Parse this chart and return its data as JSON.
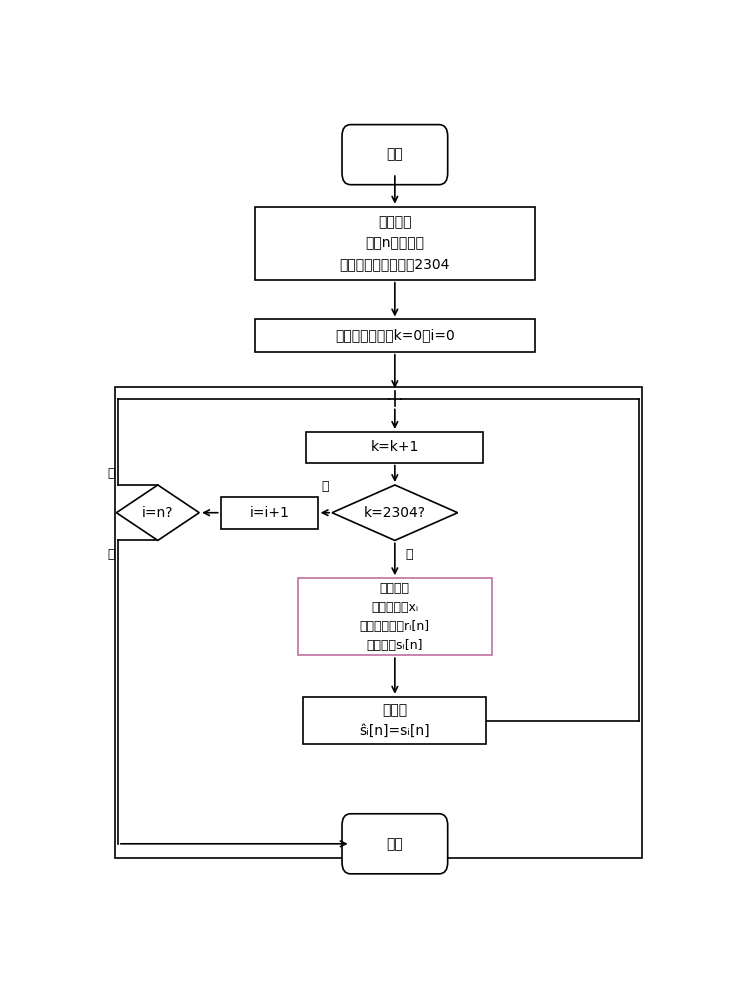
{
  "bg_color": "#ffffff",
  "line_color": "#000000",
  "fig_width": 7.37,
  "fig_height": 10.0,
  "start_text": "开始",
  "end_text": "结束",
  "init1_text": "初始化：\n生成n个数据帧\n每帧的数据块个数为2304",
  "init2_text": "初始化循环次数k=0，i=0",
  "kplus1_text": "k=k+1",
  "k2304_text": "k=2304?",
  "iplus1_text": "i=i+1",
  "ieqn_text": "i=n?",
  "receiver_text": "接收机：\n接收数据块xᵢ\n频域均衡处理rᵢ[n]\n频偏补偿sᵢ[n]",
  "output_text": "输出：\nŝᵢ[n]=sᵢ[n]",
  "shi": "是",
  "fou": "否",
  "pink_color": "#c070a0"
}
